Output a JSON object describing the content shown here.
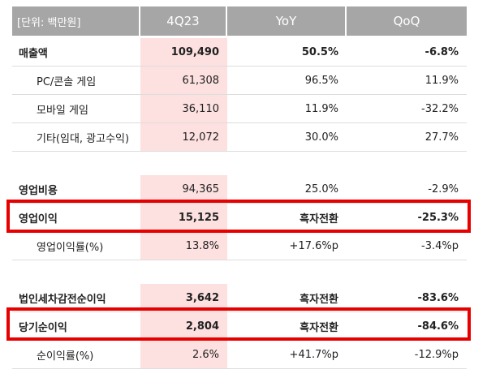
{
  "table": {
    "header": [
      "[단위: 백만원]",
      "4Q23",
      "YoY",
      "QoQ"
    ],
    "rows": [
      [
        "매출액",
        "109,490",
        "50.5%",
        "-6.8%"
      ],
      [
        "PC/콘솔 게임",
        "61,308",
        "96.5%",
        "11.9%"
      ],
      [
        "모바일 게임",
        "36,110",
        "11.9%",
        "-32.2%"
      ],
      [
        "기타(임대, 광고수익)",
        "12,072",
        "30.0%",
        "27.7%"
      ],
      [
        "영업비용",
        "94,365",
        "25.0%",
        "-2.9%"
      ],
      [
        "영업이익",
        "15,125",
        "흑자전환",
        "-25.3%"
      ],
      [
        "영업이익률(%)",
        "13.8%",
        "+17.6%p",
        "-3.4%p"
      ],
      [
        "법인세차감전순이익",
        "3,642",
        "흑자전환",
        "-83.6%"
      ],
      [
        "당기순이익",
        "2,804",
        "흑자전환",
        "-84.6%"
      ],
      [
        "순이익률(%)",
        "2.6%",
        "+41.7%p",
        "-12.9%p"
      ]
    ]
  }
}
